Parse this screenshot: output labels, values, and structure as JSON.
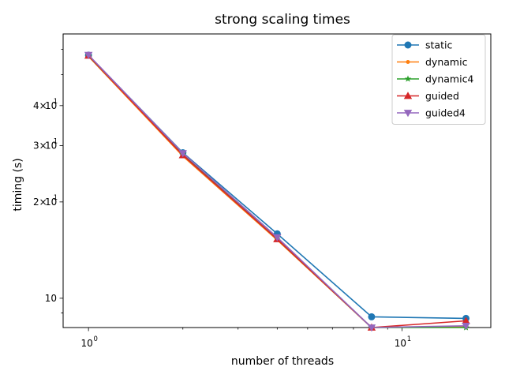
{
  "chart_data": {
    "type": "line",
    "title": "strong scaling times",
    "xlabel": "number of threads",
    "ylabel": "timing (s)",
    "xscale": "log",
    "yscale": "log",
    "xlim": [
      0.83,
      19.2
    ],
    "ylim": [
      8.1,
      67
    ],
    "x": [
      1,
      2,
      4,
      8,
      16
    ],
    "x_ticks": [
      {
        "value": 1,
        "base": "10",
        "exp": "0"
      },
      {
        "value": 10,
        "base": "10",
        "exp": "1"
      }
    ],
    "y_ticks": [
      {
        "value": 10,
        "text": "10",
        "coef": "",
        "exp": ""
      },
      {
        "value": 20,
        "text": "",
        "coef": "2×",
        "exp": "1"
      },
      {
        "value": 30,
        "text": "",
        "coef": "3×",
        "exp": "1"
      },
      {
        "value": 40,
        "text": "",
        "coef": "4×",
        "exp": "1"
      }
    ],
    "legend_position": "top-right",
    "series": [
      {
        "name": "static",
        "color": "#1f77b4",
        "marker": "circle",
        "values": [
          57.5,
          28.5,
          15.9,
          8.75,
          8.65
        ]
      },
      {
        "name": "dynamic",
        "color": "#ff7f0e",
        "marker": "point",
        "values": [
          57.0,
          27.8,
          15.2,
          8.1,
          8.15
        ]
      },
      {
        "name": "dynamic4",
        "color": "#2ca02c",
        "marker": "star",
        "values": [
          57.2,
          28.2,
          15.3,
          8.1,
          8.1
        ]
      },
      {
        "name": "guided",
        "color": "#d62728",
        "marker": "triangle-up",
        "values": [
          57.3,
          28.0,
          15.3,
          8.1,
          8.5
        ]
      },
      {
        "name": "guided4",
        "color": "#9467bd",
        "marker": "triangle-down",
        "values": [
          57.6,
          28.4,
          15.5,
          8.1,
          8.2
        ]
      }
    ]
  }
}
